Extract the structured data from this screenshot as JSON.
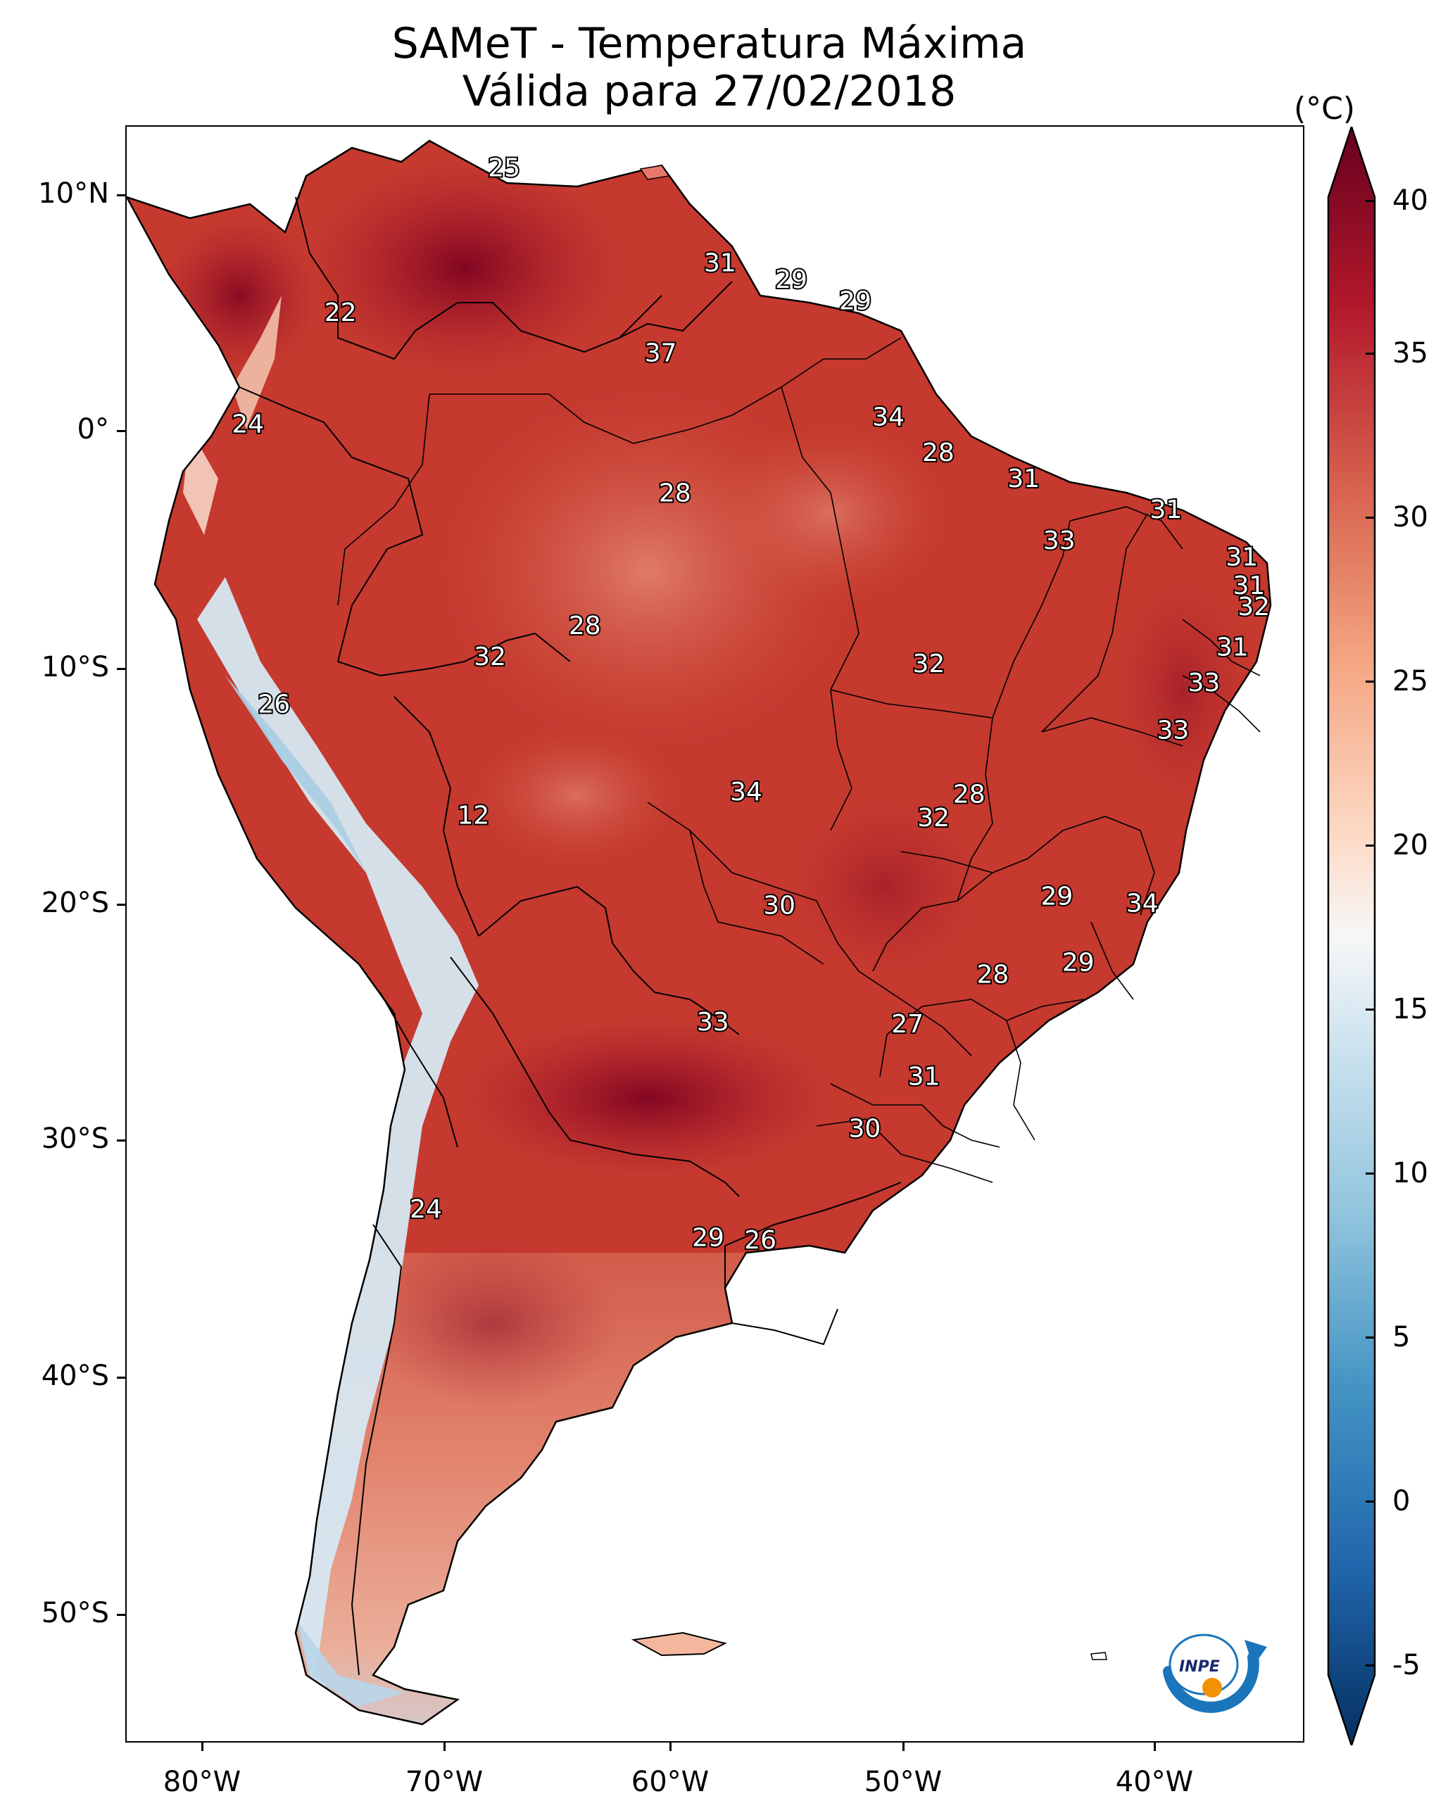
{
  "title": "SAMeT - Temperatura Máxima",
  "subtitle": "Válida para 27/02/2018",
  "colorbar": {
    "unit": "(°C)",
    "ticks": [
      "40",
      "35",
      "30",
      "25",
      "20",
      "15",
      "10",
      "5",
      "0",
      "-5"
    ],
    "range": [
      -5,
      40
    ],
    "colors": [
      "#053061",
      "#2166ac",
      "#4393c3",
      "#92c5de",
      "#d1e5f0",
      "#f7f7f7",
      "#fddbc7",
      "#f4a582",
      "#d6604d",
      "#b2182b",
      "#67001f"
    ]
  },
  "axes": {
    "lat_labels": [
      "10°N",
      "0°",
      "10°S",
      "20°S",
      "30°S",
      "40°S",
      "50°S"
    ],
    "lon_labels": [
      "80°W",
      "70°W",
      "60°W",
      "50°W",
      "40°W"
    ]
  },
  "contour_labels": [
    {
      "text": "25",
      "lon": -67,
      "lat": 10.5
    },
    {
      "text": "31",
      "lon": -57.9,
      "lat": 6.5
    },
    {
      "text": "29",
      "lon": -54.9,
      "lat": 5.8
    },
    {
      "text": "29",
      "lon": -52.2,
      "lat": 4.9
    },
    {
      "text": "22",
      "lon": -73.9,
      "lat": 4.4
    },
    {
      "text": "37",
      "lon": -60.4,
      "lat": 2.7
    },
    {
      "text": "34",
      "lon": -50.8,
      "lat": 0.0
    },
    {
      "text": "24",
      "lon": -77.8,
      "lat": -0.3
    },
    {
      "text": "28",
      "lon": -48.7,
      "lat": -1.5
    },
    {
      "text": "31",
      "lon": -45.1,
      "lat": -2.6
    },
    {
      "text": "28",
      "lon": -59.8,
      "lat": -3.2
    },
    {
      "text": "31",
      "lon": -39.1,
      "lat": -3.9
    },
    {
      "text": "33",
      "lon": -43.6,
      "lat": -5.2
    },
    {
      "text": "31",
      "lon": -35.9,
      "lat": -5.9
    },
    {
      "text": "31",
      "lon": -35.6,
      "lat": -7.1
    },
    {
      "text": "32",
      "lon": -35.4,
      "lat": -8.0
    },
    {
      "text": "28",
      "lon": -63.6,
      "lat": -8.8
    },
    {
      "text": "31",
      "lon": -36.3,
      "lat": -9.7
    },
    {
      "text": "32",
      "lon": -67.6,
      "lat": -10.1
    },
    {
      "text": "32",
      "lon": -49.1,
      "lat": -10.4
    },
    {
      "text": "33",
      "lon": -37.5,
      "lat": -11.2
    },
    {
      "text": "26",
      "lon": -76.7,
      "lat": -12.1
    },
    {
      "text": "33",
      "lon": -38.8,
      "lat": -13.2
    },
    {
      "text": "34",
      "lon": -56.8,
      "lat": -15.8
    },
    {
      "text": "28",
      "lon": -47.4,
      "lat": -15.9
    },
    {
      "text": "32",
      "lon": -48.9,
      "lat": -16.9
    },
    {
      "text": "12",
      "lon": -68.3,
      "lat": -16.8
    },
    {
      "text": "29",
      "lon": -43.7,
      "lat": -20.2
    },
    {
      "text": "34",
      "lon": -40.1,
      "lat": -20.5
    },
    {
      "text": "30",
      "lon": -55.4,
      "lat": -20.6
    },
    {
      "text": "29",
      "lon": -42.8,
      "lat": -23.0
    },
    {
      "text": "28",
      "lon": -46.4,
      "lat": -23.5
    },
    {
      "text": "27",
      "lon": -50.0,
      "lat": -25.6
    },
    {
      "text": "33",
      "lon": -58.2,
      "lat": -25.5
    },
    {
      "text": "31",
      "lon": -49.3,
      "lat": -27.8
    },
    {
      "text": "30",
      "lon": -51.8,
      "lat": -30.0
    },
    {
      "text": "24",
      "lon": -70.3,
      "lat": -33.4
    },
    {
      "text": "29",
      "lon": -58.4,
      "lat": -34.6
    },
    {
      "text": "26",
      "lon": -56.2,
      "lat": -34.7
    }
  ],
  "logo_text": "INPE"
}
